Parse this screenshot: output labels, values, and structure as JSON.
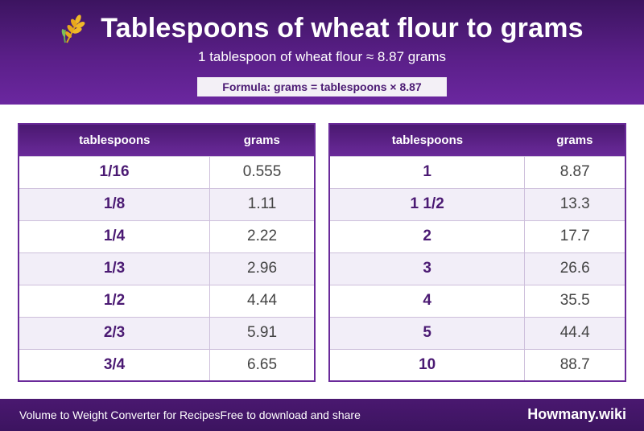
{
  "header": {
    "icon": "wheat-icon",
    "title": "Tablespoons of wheat flour to grams",
    "subtitle": "1 tablespoon of wheat flour ≈ 8.87 grams",
    "formula": "Formula: grams = tablespoons × 8.87"
  },
  "tables": {
    "left": {
      "headers": [
        "tablespoons",
        "grams"
      ],
      "rows": [
        [
          "1/16",
          "0.555"
        ],
        [
          "1/8",
          "1.11"
        ],
        [
          "1/4",
          "2.22"
        ],
        [
          "1/3",
          "2.96"
        ],
        [
          "1/2",
          "4.44"
        ],
        [
          "2/3",
          "5.91"
        ],
        [
          "3/4",
          "6.65"
        ]
      ]
    },
    "right": {
      "headers": [
        "tablespoons",
        "grams"
      ],
      "rows": [
        [
          "1",
          "8.87"
        ],
        [
          "1 1/2",
          "13.3"
        ],
        [
          "2",
          "17.7"
        ],
        [
          "3",
          "26.6"
        ],
        [
          "4",
          "35.5"
        ],
        [
          "5",
          "44.4"
        ],
        [
          "10",
          "88.7"
        ]
      ]
    }
  },
  "footer": {
    "tagline": "Volume to Weight Converter for Recipes",
    "share_text": "Free to download and share",
    "brand": "Howmany.wiki"
  },
  "colors": {
    "header_purple": "#5a1f88",
    "accent_text": "#4b1a73",
    "row_alt": "#f2eef8"
  }
}
